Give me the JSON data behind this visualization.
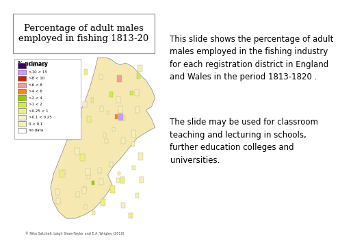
{
  "background_color": "#ffffff",
  "left_bg_color": "#b8e8f0",
  "title": "Percentage of adult males\nemployed in fishing 1813-20",
  "title_fontsize": 9.5,
  "title_box_color": "#ffffff",
  "legend_title": "% primary",
  "legend_items": [
    {
      "label": ">15 < 20",
      "color": "#3d0066"
    },
    {
      "label": ">10 < 15",
      "color": "#cc99ff"
    },
    {
      "label": ">8 < 10",
      "color": "#cc2200"
    },
    {
      "label": ">6 < 8",
      "color": "#ff9999"
    },
    {
      "label": ">4 < 6",
      "color": "#ff8800"
    },
    {
      "label": ">2 < 4",
      "color": "#99cc00"
    },
    {
      "label": ">1 < 2",
      "color": "#ccee44"
    },
    {
      "label": ">0.25 < 1",
      "color": "#eeee88"
    },
    {
      "label": ">0.1 < 0.25",
      "color": "#f5f0cc"
    },
    {
      "label": "0 < 0.1",
      "color": "#f5eebb"
    },
    {
      "label": "no data",
      "color": "#ffffff"
    }
  ],
  "right_text1": "This slide shows the percentage of adult\nmales employed in the fishing industry\nfor each registration district in England\nand Wales in the period 1813-1820 .",
  "right_text2": "The slide may be used for classroom\nteaching and lecturing in schools,\nfurther education colleges and\nuniversities.",
  "text_fontsize": 8.5,
  "copyright": "© Niko Satchell, Leigh Shaw-Taylor and E.A. Wrigley (2010)",
  "copyright_fontsize": 3.5
}
